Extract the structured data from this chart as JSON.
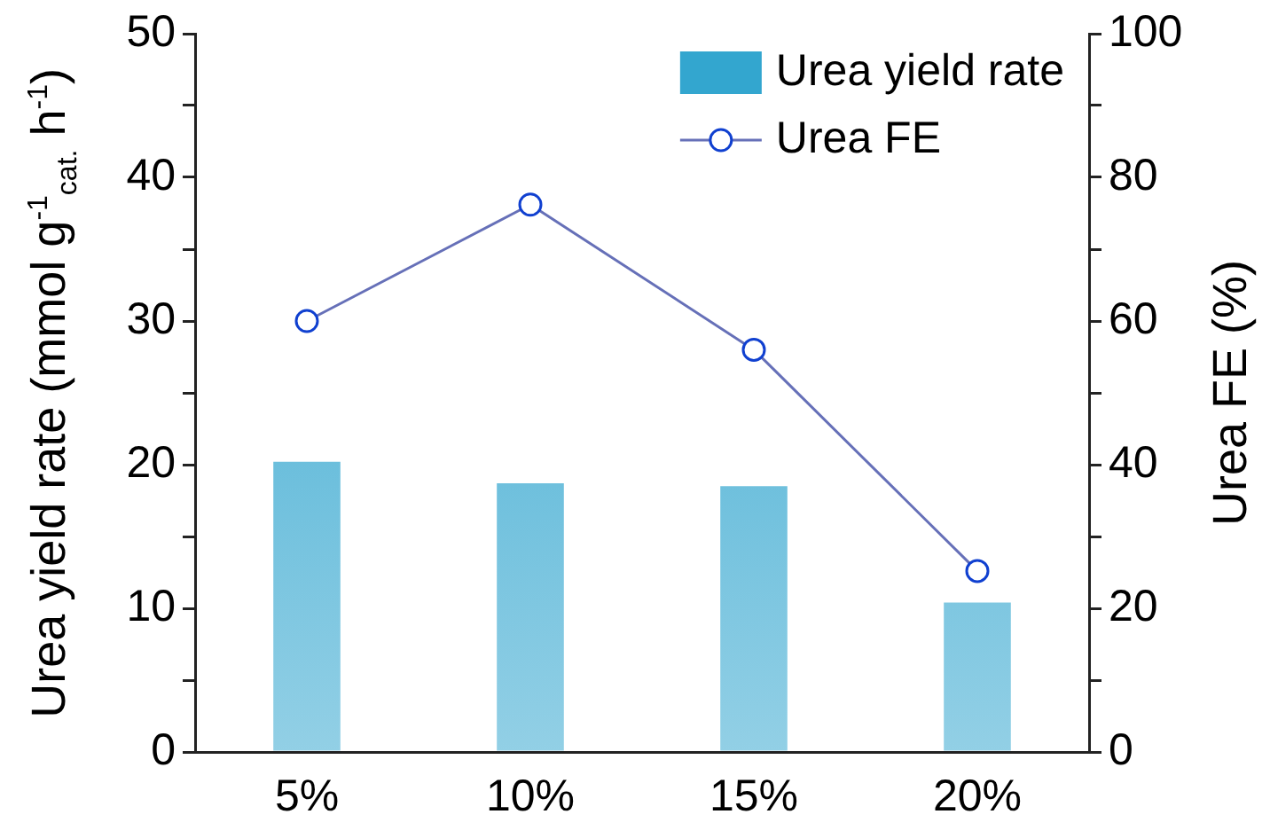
{
  "chart_data": {
    "type": "bar",
    "categories": [
      "5%",
      "10%",
      "15%",
      "20%"
    ],
    "ylabel": "Urea yield rate (mmol g$^{-1}$$_{cat.}$ h$^{-1}$)",
    "y2label": "Urea FE (%)",
    "series": [
      {
        "name": "Urea yield rate",
        "color": "#33a6cf",
        "values": [
          20.2,
          18.7,
          18.5,
          10.4
        ]
      },
      {
        "name": "Urea FE",
        "type": "line",
        "axis": "y2",
        "color": "#6670b8",
        "values": [
          60,
          76.2,
          56,
          25.2
        ]
      }
    ],
    "ylim": [
      0,
      50
    ],
    "yticks": [
      0,
      {
        "value": 5,
        "label": null
      },
      10,
      {
        "value": 15,
        "label": null
      },
      20,
      {
        "value": 25,
        "label": null
      },
      30,
      {
        "value": 35,
        "label": null
      },
      40,
      {
        "value": 45,
        "label": null
      },
      50
    ],
    "y2lim": [
      0,
      100
    ],
    "y2ticks": [
      0,
      {
        "value": 10,
        "label": null
      },
      20,
      {
        "value": 30,
        "label": null
      },
      40,
      {
        "value": 50,
        "label": null
      },
      60,
      {
        "value": 70,
        "label": null
      },
      80,
      {
        "value": 90,
        "label": null
      },
      100
    ],
    "marker": "circle",
    "line_style": "solid",
    "legend": "top right",
    "grid": false
  }
}
